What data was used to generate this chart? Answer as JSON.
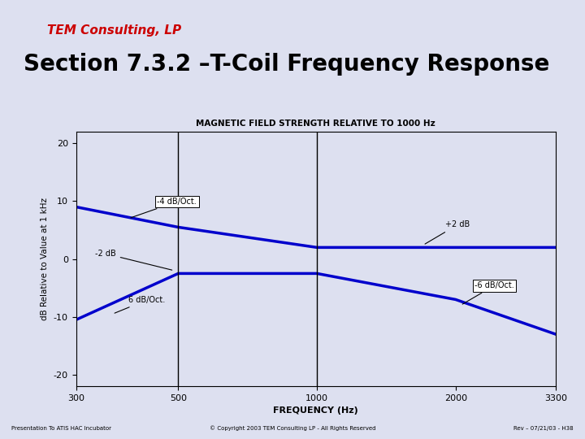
{
  "background_color": "#dde0f0",
  "plot_bg_color": "#dde0f0",
  "title_main": "Section 7.3.2 –T-Coil Frequency Response",
  "title_sub": "MAGNETIC FIELD STRENGTH RELATIVE TO 1000 Hz",
  "xlabel": "FREQUENCY (Hz)",
  "ylabel": "dB Relative to Value at 1 kHz",
  "logo_text": "TEM Consulting, LP",
  "footer_left": "Presentation To ATIS HAC Incubator",
  "footer_center": "© Copyright 2003 TEM Consulting LP - All Rights Reserved",
  "footer_right": "Rev – 07/21/03 - H38",
  "xticks": [
    300,
    500,
    1000,
    2000,
    3300
  ],
  "yticks": [
    -20,
    -10,
    0,
    10,
    20
  ],
  "ylim": [
    -22,
    22
  ],
  "curve1_x": [
    300,
    500,
    1000,
    2000,
    3300
  ],
  "curve1_y": [
    9.0,
    5.5,
    2.0,
    2.0,
    2.0
  ],
  "curve2_x": [
    300,
    500,
    1000,
    2000,
    3300
  ],
  "curve2_y": [
    -10.5,
    -2.5,
    -2.5,
    -7.0,
    -13.0
  ],
  "curve_color": "#0000cc",
  "curve_linewidth": 2.5,
  "vline_x": [
    500,
    1000
  ],
  "vline_color": "#000000",
  "vline_linewidth": 1.0
}
